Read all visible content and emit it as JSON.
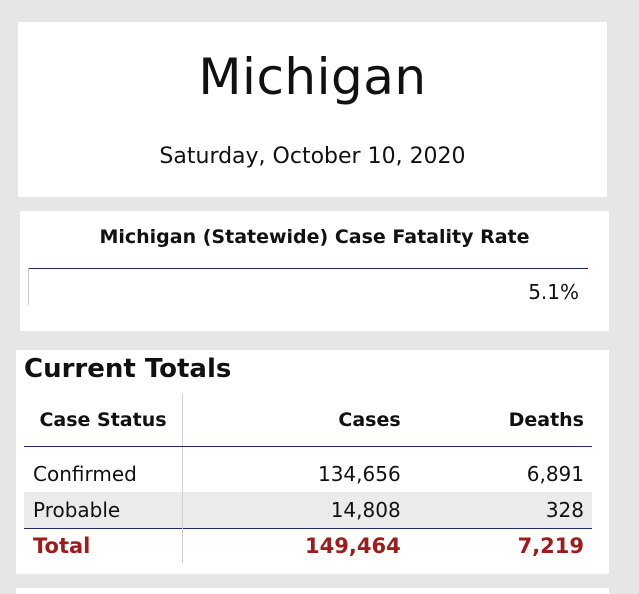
{
  "header": {
    "title": "Michigan",
    "date": "Saturday, October 10, 2020"
  },
  "cfr": {
    "title": "Michigan (Statewide) Case Fatality Rate",
    "value": "5.1%"
  },
  "totals": {
    "title": "Current Totals",
    "columns": [
      "Case Status",
      "Cases",
      "Deaths"
    ],
    "rows": [
      {
        "status": "Confirmed",
        "cases": "134,656",
        "deaths": "6,891"
      },
      {
        "status": "Probable",
        "cases": "14,808",
        "deaths": "328"
      }
    ],
    "total": {
      "status": "Total",
      "cases": "149,464",
      "deaths": "7,219"
    },
    "total_color": "#a01b1b"
  }
}
